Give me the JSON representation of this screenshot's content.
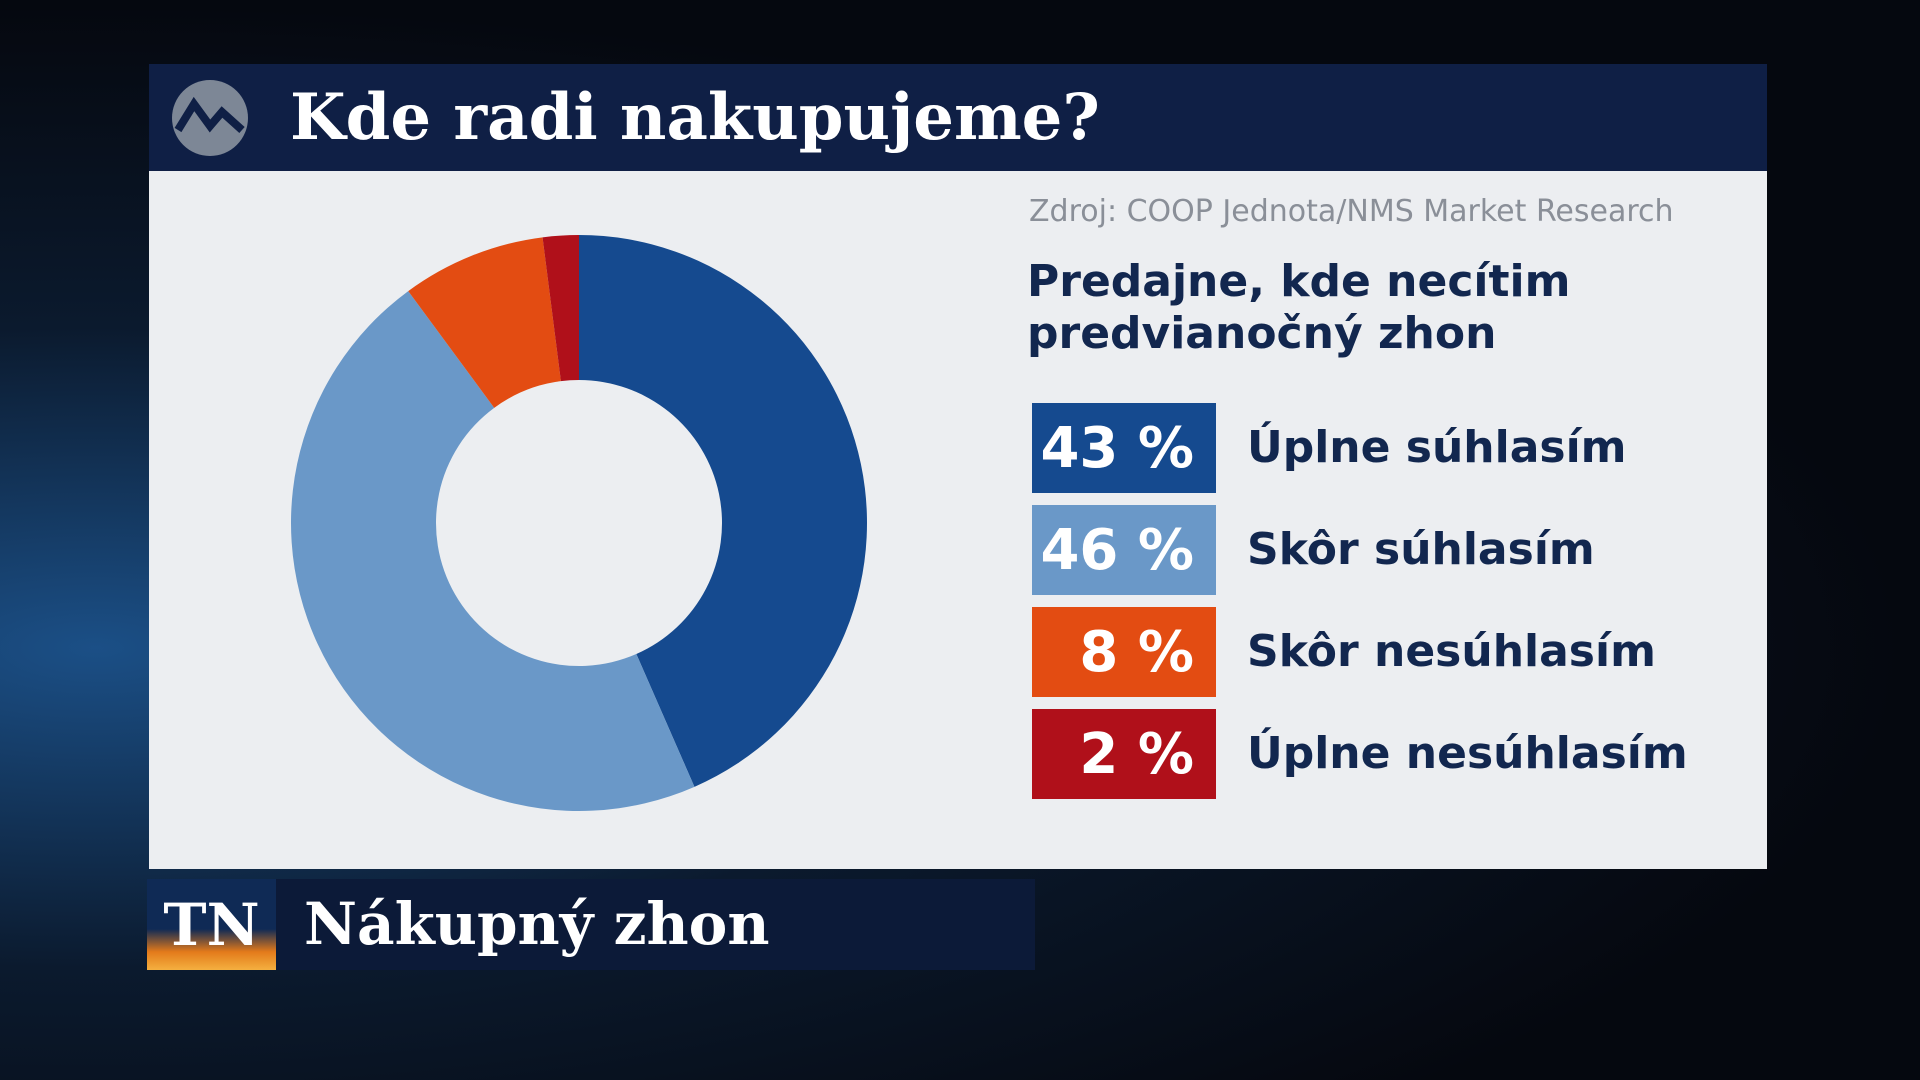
{
  "header": {
    "title": "Kde radi nakupujeme?"
  },
  "chart_data": {
    "type": "donut",
    "title": "Predajne, kde necítim predvianočný zhon",
    "source": "Zdroj: COOP Jednota/NMS Market Research",
    "categories": [
      "Úplne súhlasím",
      "Skôr súhlasím",
      "Skôr nesúhlasím",
      "Úplne nesúhlasím"
    ],
    "values": [
      43,
      46,
      8,
      2
    ],
    "value_labels": [
      "43 %",
      "46 %",
      "8 %",
      "2 %"
    ],
    "colors": [
      "#154a8f",
      "#6a98c8",
      "#e34c12",
      "#b0101a"
    ]
  },
  "lower_third": {
    "logo": "TN",
    "text": "Nákupný zhon"
  }
}
